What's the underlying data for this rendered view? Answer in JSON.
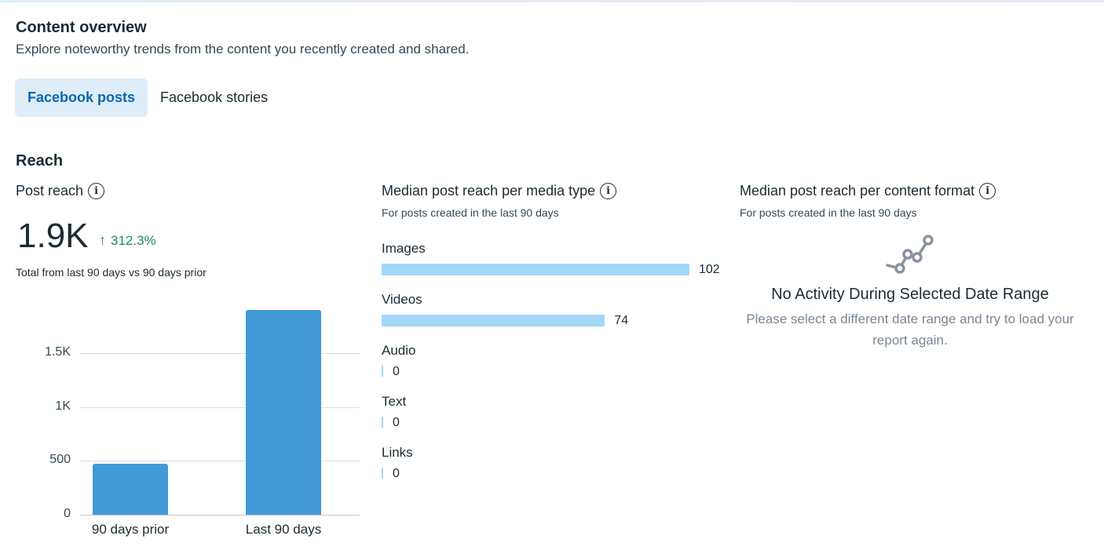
{
  "header": {
    "title": "Content overview",
    "subtitle": "Explore noteworthy trends from the content you recently created and shared."
  },
  "tabs": [
    {
      "label": "Facebook posts",
      "active": true
    },
    {
      "label": "Facebook stories",
      "active": false
    }
  ],
  "section": {
    "title": "Reach"
  },
  "post_reach": {
    "title": "Post reach",
    "value": "1.9K",
    "trend": "312.3%",
    "trend_direction": "up",
    "note": "Total from last 90 days vs 90 days prior"
  },
  "media_type": {
    "title": "Median post reach per media type",
    "subtitle": "For posts created in the last 90 days"
  },
  "content_format": {
    "title": "Median post reach per content format",
    "subtitle": "For posts created in the last 90 days",
    "empty_title": "No Activity During Selected Date Range",
    "empty_description": "Please select a different date range and try to load your report again."
  },
  "icons": {
    "info": "info-icon",
    "trend": "arrow-up-icon",
    "empty": "line-chart-icon"
  },
  "colors": {
    "accent": "#0a66b0",
    "bar": "#4199d6",
    "media_bar": "#a1d8f7",
    "trend_up": "#1f8a5b"
  },
  "chart_data": [
    {
      "type": "bar",
      "categories": [
        "90 days prior",
        "Last 90 days"
      ],
      "values": [
        470,
        1900
      ],
      "ylim": [
        0,
        1900
      ],
      "yticks": [
        0,
        500,
        1000,
        1500
      ],
      "ytick_labels": [
        "0",
        "500",
        "1K",
        "1.5K"
      ],
      "grid": true
    },
    {
      "type": "bar",
      "orientation": "horizontal",
      "categories": [
        "Images",
        "Videos",
        "Audio",
        "Text",
        "Links"
      ],
      "values": [
        102,
        74,
        0,
        0,
        0
      ],
      "value_labels": [
        "102",
        "74",
        "0",
        "0",
        "0"
      ],
      "xlim": [
        0,
        102
      ]
    }
  ]
}
